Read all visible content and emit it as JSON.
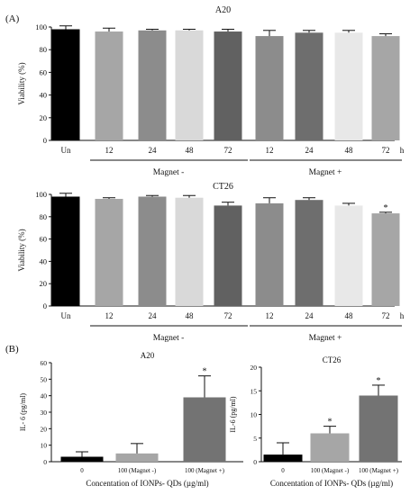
{
  "panels": {
    "a": "(A)",
    "b": "(B)"
  },
  "chart_data": [
    {
      "type": "bar",
      "title": "A20",
      "ylabel": "Viability (%)",
      "ylim": [
        0,
        100
      ],
      "yticks": [
        "0",
        "20",
        "40",
        "60",
        "80",
        "100"
      ],
      "categories": [
        "Un",
        "12",
        "24",
        "48",
        "72",
        "12",
        "24",
        "48",
        "72"
      ],
      "x_unit": "h",
      "groups": [
        "Magnet -",
        "Magnet +"
      ],
      "values": [
        98,
        96,
        97,
        97,
        96,
        92,
        95,
        95,
        92
      ],
      "errors": [
        3,
        3,
        1,
        1,
        2,
        5,
        2,
        2,
        2
      ],
      "annotations": [
        "",
        "",
        "",
        "",
        "",
        "",
        "",
        "",
        ""
      ],
      "colors": [
        "#000000",
        "#a6a6a6",
        "#8c8c8c",
        "#d9d9d9",
        "#616161",
        "#8c8c8c",
        "#6e6e6e",
        "#e8e8e8",
        "#a6a6a6"
      ]
    },
    {
      "type": "bar",
      "title": "CT26",
      "ylabel": "Viability (%)",
      "ylim": [
        0,
        100
      ],
      "yticks": [
        "0",
        "20",
        "40",
        "60",
        "80",
        "100"
      ],
      "categories": [
        "Un",
        "12",
        "24",
        "48",
        "72",
        "12",
        "24",
        "48",
        "72"
      ],
      "x_unit": "h",
      "groups": [
        "Magnet -",
        "Magnet +"
      ],
      "values": [
        98,
        96,
        98,
        97,
        90,
        92,
        95,
        90,
        83
      ],
      "errors": [
        3,
        1,
        1,
        2,
        3,
        5,
        2,
        2,
        1
      ],
      "annotations": [
        "",
        "",
        "",
        "",
        "",
        "",
        "",
        "",
        "*"
      ],
      "colors": [
        "#000000",
        "#a6a6a6",
        "#8c8c8c",
        "#d9d9d9",
        "#616161",
        "#8c8c8c",
        "#6e6e6e",
        "#e8e8e8",
        "#a6a6a6"
      ]
    },
    {
      "type": "bar",
      "title": "A20",
      "ylabel": "IL- 6 (pg/ml)",
      "xlabel": "Concentation of IONPs- QDs (µg/ml)",
      "ylim": [
        0,
        60
      ],
      "yticks": [
        "0",
        "10",
        "20",
        "30",
        "40",
        "50",
        "60"
      ],
      "categories": [
        "0",
        "100 (Magnet -)",
        "100 (Magnet +)"
      ],
      "values": [
        3,
        5,
        39
      ],
      "errors": [
        3,
        6,
        13
      ],
      "annotations": [
        "",
        "",
        "*"
      ],
      "colors": [
        "#000000",
        "#a6a6a6",
        "#737373"
      ]
    },
    {
      "type": "bar",
      "title": "CT26",
      "ylabel": "IL-6 (pg/ml)",
      "xlabel": "Concentation of IONPs- QDs (µg/ml)",
      "ylim": [
        0,
        20
      ],
      "yticks": [
        "0",
        "5",
        "10",
        "15",
        "20"
      ],
      "categories": [
        "0",
        "100 (Magnet -)",
        "100 (Magnet +)"
      ],
      "values": [
        1.5,
        6,
        14
      ],
      "errors": [
        2.5,
        1.5,
        2.2
      ],
      "annotations": [
        "",
        "*",
        "*"
      ],
      "colors": [
        "#000000",
        "#a6a6a6",
        "#737373"
      ]
    }
  ]
}
